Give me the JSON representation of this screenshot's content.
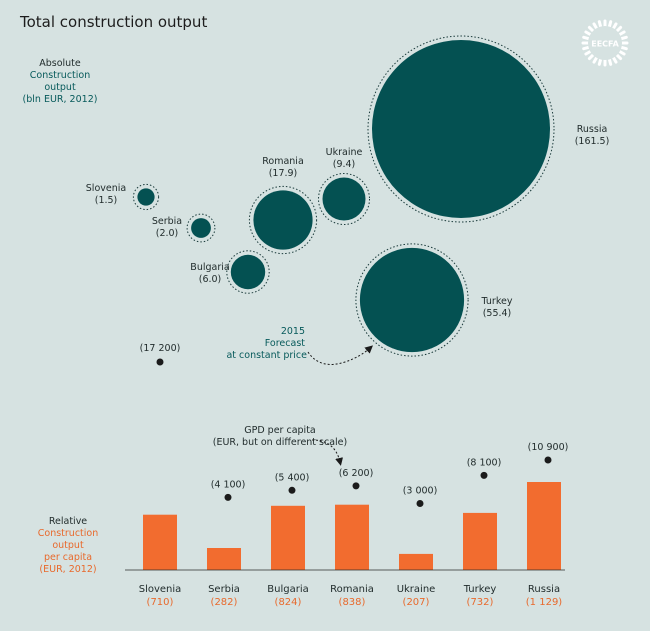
{
  "title": "Total construction output",
  "logo_text": "EECFA",
  "colors": {
    "background": "#d6e2e1",
    "bubble": "#045152",
    "bar": "#f26c2f",
    "teal_text": "#075a5b",
    "orange_text": "#e8692c",
    "dark": "#1b1b1b"
  },
  "absolute_legend": {
    "line1": "Absolute",
    "line2": "Construction",
    "line3": "output",
    "line4": "(bln EUR, 2012)"
  },
  "forecast_note": {
    "line1": "2015",
    "line2": "Forecast",
    "line3": "at constant price"
  },
  "stray_value": "(17 200)",
  "gdp_note": {
    "line1": "GPD per capita",
    "line2": "(EUR, but on different scale)"
  },
  "relative_legend": {
    "line1": "Relative",
    "line2": "Construction",
    "line3": "output",
    "line4": "per capita",
    "line5": "(EUR, 2012)"
  },
  "chart_data": [
    {
      "type": "bubble",
      "title": "Absolute Construction output (bln EUR, 2012)",
      "countries": [
        {
          "name": "Slovenia",
          "value": 1.5,
          "label": "(1.5)"
        },
        {
          "name": "Serbia",
          "value": 2.0,
          "label": "(2.0)"
        },
        {
          "name": "Bulgaria",
          "value": 6.0,
          "label": "(6.0)"
        },
        {
          "name": "Romania",
          "value": 17.9,
          "label": "(17.9)"
        },
        {
          "name": "Ukraine",
          "value": 9.4,
          "label": "(9.4)"
        },
        {
          "name": "Russia",
          "value": 161.5,
          "label": "(161.5)"
        },
        {
          "name": "Turkey",
          "value": 55.4,
          "label": "(55.4)"
        }
      ]
    },
    {
      "type": "bar",
      "title": "Relative Construction output per capita (EUR, 2012)",
      "categories": [
        "Slovenia",
        "Serbia",
        "Bulgaria",
        "Romania",
        "Ukraine",
        "Turkey",
        "Russia"
      ],
      "values": [
        710,
        282,
        824,
        838,
        207,
        732,
        1129
      ],
      "value_labels": [
        "(710)",
        "(282)",
        "(824)",
        "(838)",
        "(207)",
        "(732)",
        "(1 129)"
      ],
      "series_points": {
        "name": "GPD per capita",
        "values": [
          17200,
          4100,
          5400,
          6200,
          3000,
          8100,
          10900
        ],
        "labels": [
          "(17 200)",
          "(4 100)",
          "(5 400)",
          "(6 200)",
          "(3 000)",
          "(8 100)",
          "(10 900)"
        ]
      }
    }
  ]
}
